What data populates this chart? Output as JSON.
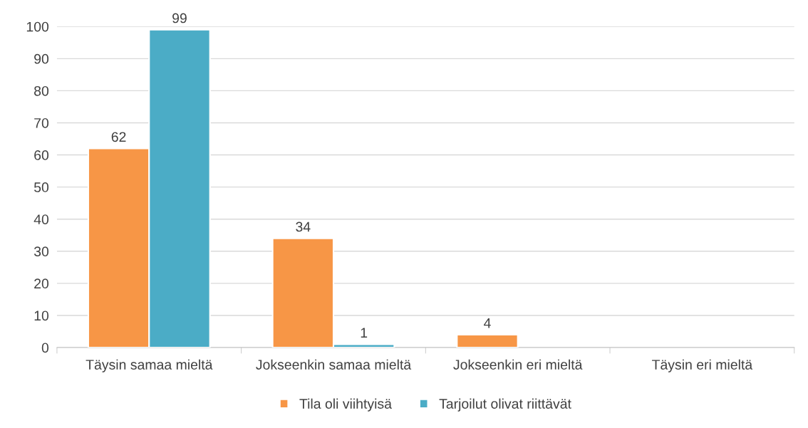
{
  "chart_data": {
    "type": "bar",
    "categories": [
      "Täysin samaa mieltä",
      "Jokseenkin samaa mieltä",
      "Jokseenkin eri mieltä",
      "Täysin eri mieltä"
    ],
    "series": [
      {
        "name": "Tila oli viihtyisä",
        "color": "#f79646",
        "values": [
          62,
          34,
          4,
          null
        ],
        "value_labels": [
          "62",
          "34",
          "4",
          null
        ]
      },
      {
        "name": "Tarjoilut olivat riittävät",
        "color": "#4bacc6",
        "values": [
          99,
          1,
          null,
          null
        ],
        "value_labels": [
          "99",
          "1",
          null,
          null
        ]
      }
    ],
    "ylim": [
      0,
      100
    ],
    "yticks": [
      0,
      10,
      20,
      30,
      40,
      50,
      60,
      70,
      80,
      90,
      100
    ],
    "grid": "y",
    "legend": "bottom"
  }
}
